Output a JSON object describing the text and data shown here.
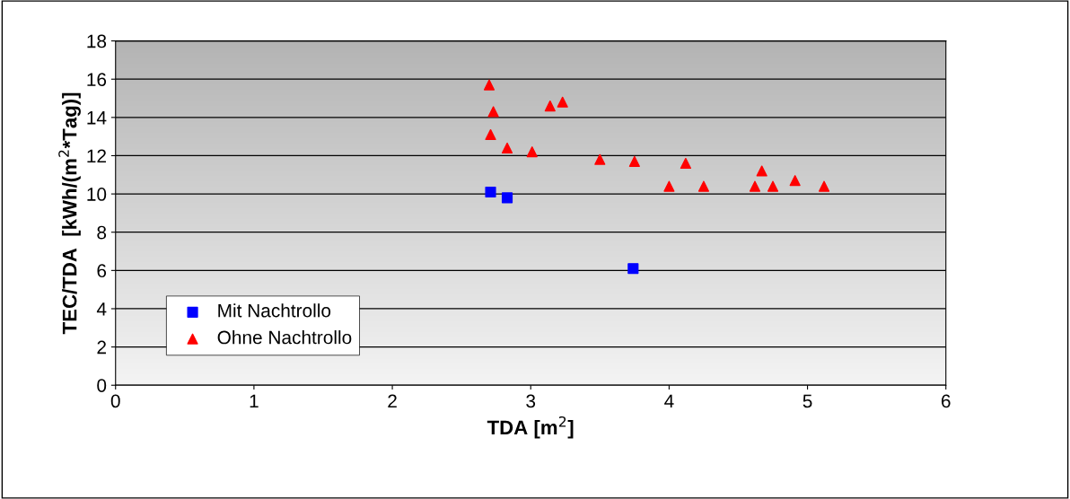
{
  "chart_data": {
    "type": "scatter",
    "xlabel": "TDA [m$^{2}$]",
    "ylabel": "TEC/TDA  [kWh/(m$^{2}$*Tag)]",
    "series": [
      {
        "name": "Mit Nachtrollo",
        "color": "#0000ff",
        "marker": "square",
        "x": [
          2.71,
          2.83,
          3.74
        ],
        "values": [
          10.1,
          9.8,
          6.1
        ]
      },
      {
        "name": "Ohne Nachtrollo",
        "color": "#ff0000",
        "marker": "triangle",
        "x": [
          2.7,
          2.73,
          2.71,
          2.83,
          3.01,
          3.14,
          3.23,
          3.5,
          3.75,
          4.0,
          4.12,
          4.25,
          4.62,
          4.67,
          4.75,
          4.91,
          5.12
        ],
        "values": [
          15.7,
          14.3,
          13.1,
          12.4,
          12.2,
          14.6,
          14.8,
          11.8,
          11.7,
          10.4,
          11.6,
          10.4,
          10.4,
          11.2,
          10.4,
          10.7,
          10.4
        ]
      }
    ],
    "xlim": [
      0,
      6
    ],
    "xticks": [
      0,
      1,
      2,
      3,
      4,
      5,
      6
    ],
    "ylim": [
      0,
      18
    ],
    "yticks": [
      0,
      2,
      4,
      6,
      8,
      10,
      12,
      14,
      16,
      18
    ],
    "grid": "y",
    "legend": "bottom left"
  }
}
